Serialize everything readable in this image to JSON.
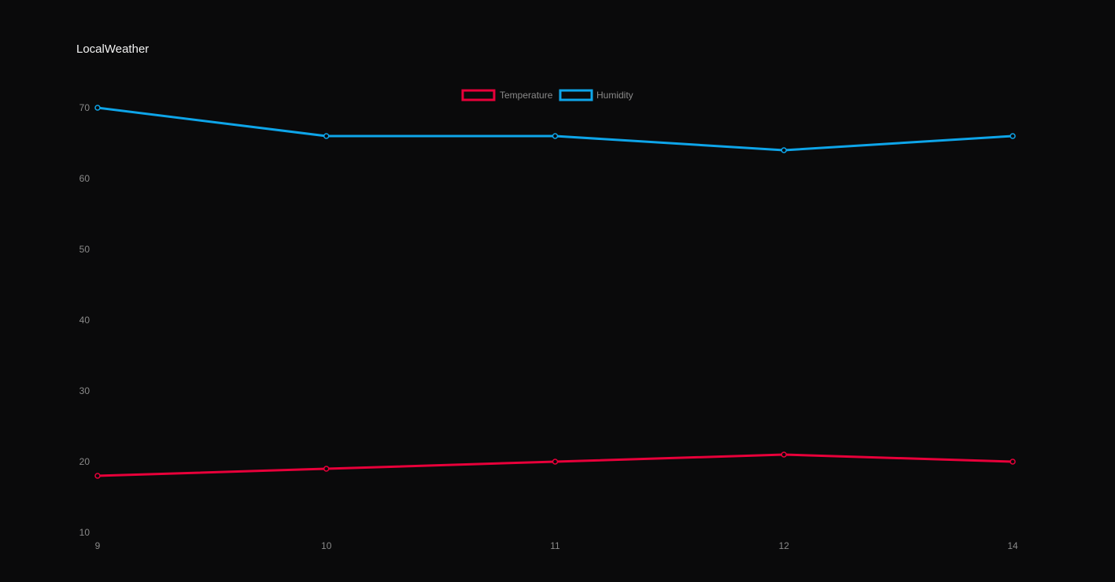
{
  "app": {
    "title": "LocalWeather"
  },
  "colors": {
    "background": "#0a0a0b",
    "temperature": "#e8003a",
    "humidity": "#0ea5e9",
    "tick_text": "#8a8a8a",
    "title_text": "#f2f2f2"
  },
  "chart_data": {
    "type": "line",
    "title": "",
    "xlabel": "",
    "ylabel": "",
    "categories": [
      "9",
      "10",
      "11",
      "12",
      "14"
    ],
    "ylim": [
      10,
      70
    ],
    "yticks": [
      10,
      20,
      30,
      40,
      50,
      60,
      70
    ],
    "grid": false,
    "legend_position": "top-center",
    "series": [
      {
        "name": "Temperature",
        "color": "#e8003a",
        "values": [
          18,
          19,
          20,
          21,
          20
        ]
      },
      {
        "name": "Humidity",
        "color": "#0ea5e9",
        "values": [
          70,
          66,
          66,
          64,
          66
        ]
      }
    ]
  }
}
